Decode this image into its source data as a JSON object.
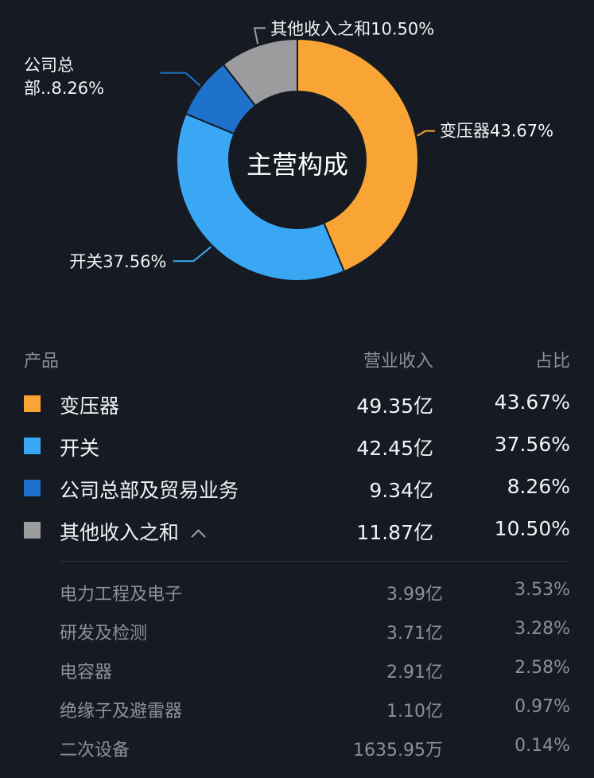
{
  "chart_data": {
    "type": "pie",
    "title": "主营构成",
    "slices": [
      {
        "name": "变压器",
        "value": 43.67,
        "label": "变压器43.67%",
        "color": "#f8a536"
      },
      {
        "name": "开关",
        "value": 37.56,
        "label": "开关37.56%",
        "color": "#3aa7f4"
      },
      {
        "name": "公司总部及贸易业务",
        "value": 8.26,
        "label_line1": "公司总",
        "label_line2": "部..8.26%",
        "color": "#1e72cc"
      },
      {
        "name": "其他收入之和",
        "value": 10.5,
        "label": "其他收入之和10.50%",
        "color": "#9c9c9f"
      }
    ]
  },
  "table": {
    "headers": {
      "product": "产品",
      "revenue": "营业收入",
      "ratio": "占比"
    },
    "rows": [
      {
        "name": "变压器",
        "revenue": "49.35亿",
        "ratio": "43.67%",
        "color": "#f8a536"
      },
      {
        "name": "开关",
        "revenue": "42.45亿",
        "ratio": "37.56%",
        "color": "#3aa7f4"
      },
      {
        "name": "公司总部及贸易业务",
        "revenue": "9.34亿",
        "ratio": "8.26%",
        "color": "#1e72cc"
      },
      {
        "name": "其他收入之和",
        "revenue": "11.87亿",
        "ratio": "10.50%",
        "color": "#9c9c9f"
      }
    ],
    "subrows": [
      {
        "name": "电力工程及电子",
        "revenue": "3.99亿",
        "ratio": "3.53%"
      },
      {
        "name": "研发及检测",
        "revenue": "3.71亿",
        "ratio": "3.28%"
      },
      {
        "name": "电容器",
        "revenue": "2.91亿",
        "ratio": "2.58%"
      },
      {
        "name": "绝缘子及避雷器",
        "revenue": "1.10亿",
        "ratio": "0.97%"
      },
      {
        "name": "二次设备",
        "revenue": "1635.95万",
        "ratio": "0.14%"
      }
    ]
  }
}
